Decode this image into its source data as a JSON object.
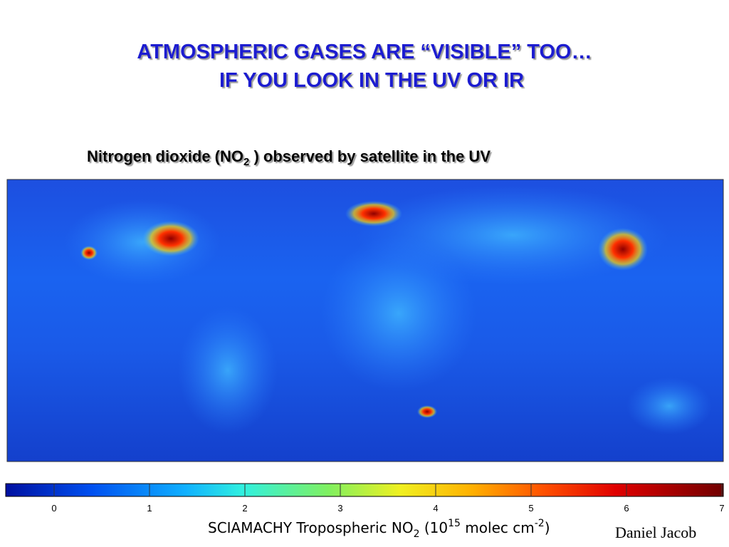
{
  "title": {
    "line1": "ATMOSPHERIC GASES ARE “VISIBLE” TOO…",
    "line2": "IF YOU LOOK IN THE UV OR IR"
  },
  "subtitle": {
    "before": "Nitrogen dioxide (NO",
    "sub": "2",
    "after": " ) observed by satellite in the UV"
  },
  "colorbar": {
    "ticks": [
      0,
      1,
      2,
      3,
      4,
      5,
      6,
      7
    ],
    "label": {
      "main": "SCIAMACHY Tropospheric NO",
      "sub": "2",
      "open": " (10",
      "exp": "15",
      "unit": " molec cm",
      "unitexp": "-2",
      "close": ")"
    }
  },
  "credit": "Daniel Jacob"
}
